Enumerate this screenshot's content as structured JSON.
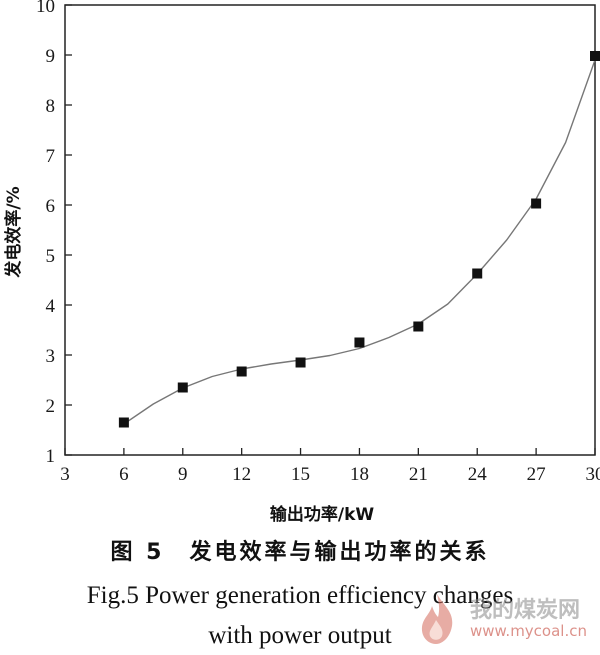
{
  "chart_data": {
    "type": "scatter",
    "title": "",
    "xlabel": "输出功率/kW",
    "ylabel": "发电效率/%",
    "xlim": [
      3,
      30
    ],
    "ylim": [
      1,
      10
    ],
    "xticks": [
      3,
      6,
      9,
      12,
      15,
      18,
      21,
      24,
      27,
      30
    ],
    "yticks": [
      1,
      2,
      3,
      4,
      5,
      6,
      7,
      8,
      9,
      10
    ],
    "grid": false,
    "series": [
      {
        "marker": "square",
        "x": [
          6,
          9,
          12,
          15,
          18,
          21,
          24,
          27,
          30
        ],
        "y": [
          1.65,
          2.35,
          2.67,
          2.85,
          3.25,
          3.57,
          4.63,
          6.03,
          8.98
        ]
      }
    ],
    "fit_curve": {
      "x": [
        6,
        7.5,
        9,
        10.5,
        12,
        13.5,
        15,
        16.5,
        18,
        19.5,
        21,
        22.5,
        24,
        25.5,
        27,
        28.5,
        30
      ],
      "y": [
        1.62,
        2.02,
        2.34,
        2.57,
        2.72,
        2.82,
        2.9,
        2.99,
        3.13,
        3.35,
        3.62,
        4.02,
        4.62,
        5.3,
        6.12,
        7.25,
        8.9
      ]
    }
  },
  "caption": {
    "zh": "图 5　发电效率与输出功率的关系",
    "en_line1": "Fig.5 Power generation efficiency changes",
    "en_line2": "with power output"
  },
  "watermark": {
    "text": "我的煤炭网",
    "url": "www.mycoal.cn"
  }
}
